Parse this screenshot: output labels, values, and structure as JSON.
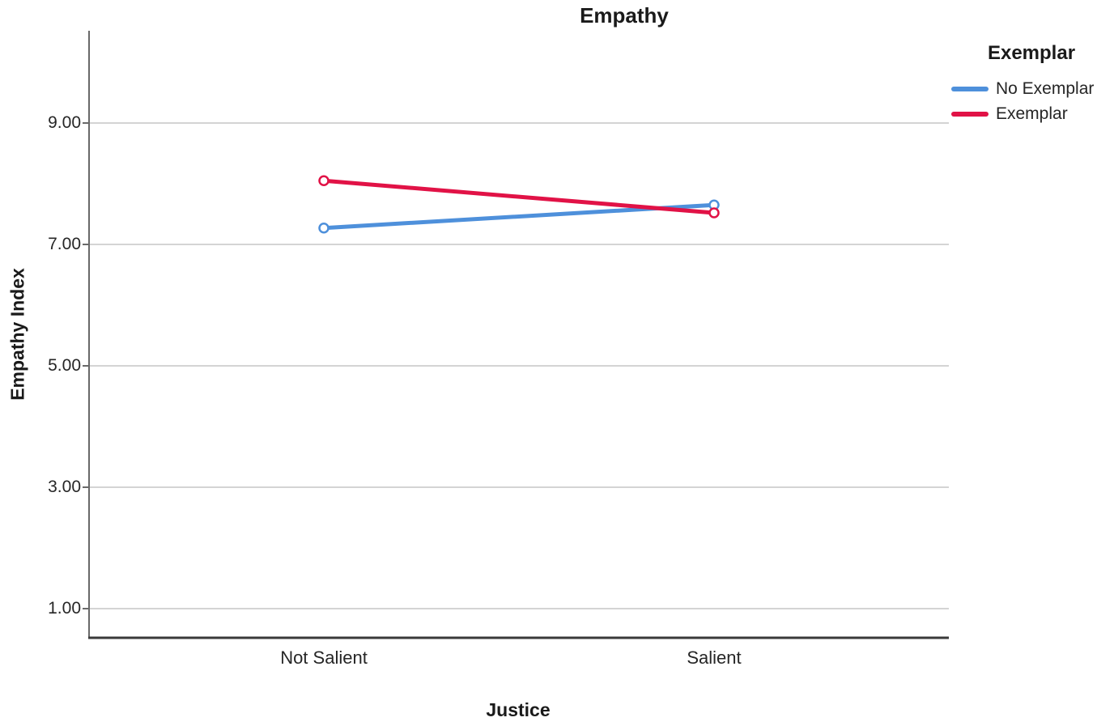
{
  "chart_data": {
    "type": "line",
    "title": "Empathy",
    "xlabel": "Justice",
    "ylabel": "Empathy Index",
    "categories": [
      "Not Salient",
      "Salient"
    ],
    "series": [
      {
        "name": "No Exemplar",
        "values": [
          7.27,
          7.65
        ],
        "color": "#4E90DB"
      },
      {
        "name": "Exemplar",
        "values": [
          8.05,
          7.52
        ],
        "color": "#E11246"
      }
    ],
    "legend_title": "Exemplar",
    "legend_position": "top-right",
    "yticks": [
      "1.00",
      "3.00",
      "5.00",
      "7.00",
      "9.00"
    ],
    "ytick_values": [
      1,
      3,
      5,
      7,
      9
    ],
    "ylim": [
      0.5,
      10.5
    ],
    "grid": true,
    "marker": "open-circle"
  },
  "colors": {
    "gridline": "#D4D4D4",
    "axis_left": "#696969",
    "axis_bottom": "#3A3A3A",
    "text": "#1a1a1a",
    "marker_fill": "#ffffff",
    "background": "#ffffff"
  }
}
